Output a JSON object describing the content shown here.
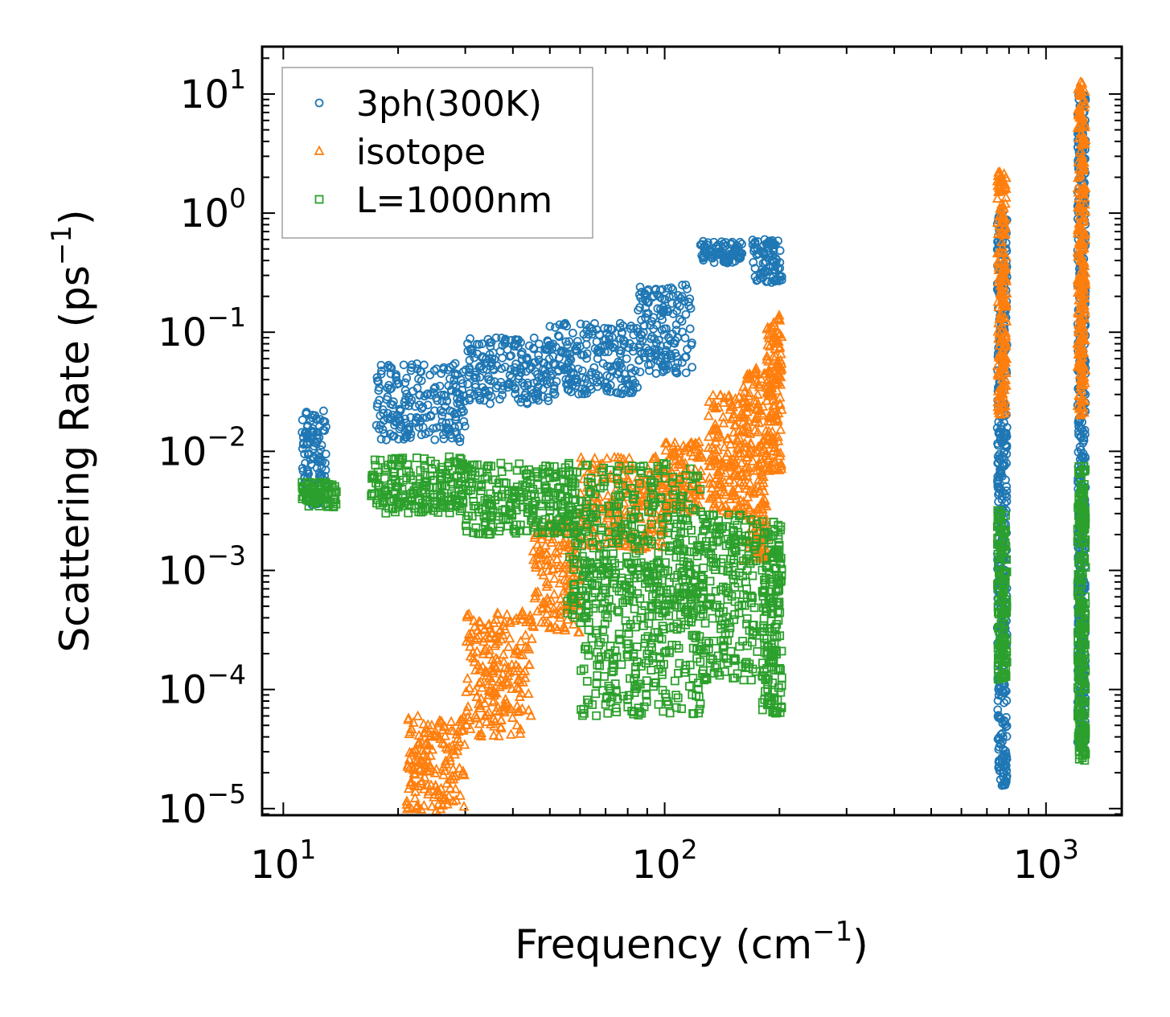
{
  "chart_data": {
    "type": "scatter",
    "xscale": "log",
    "yscale": "log",
    "xlabel_base": "Frequency (cm",
    "ylabel_base": "Scattering Rate (ps",
    "label_exponent": "−1",
    "label_close": ")",
    "xlim": [
      8.8,
      1580
    ],
    "ylim": [
      8.8e-06,
      25
    ],
    "x_ticks": [
      {
        "value": 10,
        "base": "10",
        "exp": "1"
      },
      {
        "value": 100,
        "base": "10",
        "exp": "2"
      },
      {
        "value": 1000,
        "base": "10",
        "exp": "3"
      }
    ],
    "y_ticks": [
      {
        "value": 10,
        "base": "10",
        "exp": "1"
      },
      {
        "value": 1,
        "base": "10",
        "exp": "0"
      },
      {
        "value": 0.1,
        "base": "10",
        "exp": "−1"
      },
      {
        "value": 0.01,
        "base": "10",
        "exp": "−2"
      },
      {
        "value": 0.001,
        "base": "10",
        "exp": "−3"
      },
      {
        "value": 0.0001,
        "base": "10",
        "exp": "−4"
      },
      {
        "value": 1e-05,
        "base": "10",
        "exp": "−5"
      }
    ],
    "legend_position": "top-left",
    "series": [
      {
        "name": "3ph(300K)",
        "marker": "circle",
        "color": "#1f77b4",
        "groups": [
          {
            "x": [
              11.2,
              13.0
            ],
            "y": [
              0.0035,
              0.022
            ]
          },
          {
            "x": [
              17.5,
              30
            ],
            "y": [
              0.012,
              0.055
            ]
          },
          {
            "x": [
              30,
              50
            ],
            "y": [
              0.025,
              0.09
            ]
          },
          {
            "x": [
              50,
              85
            ],
            "y": [
              0.03,
              0.12
            ]
          },
          {
            "x": [
              85,
              118
            ],
            "y": [
              0.045,
              0.25
            ]
          },
          {
            "x": [
              124,
              160
            ],
            "y": [
              0.38,
              0.58
            ]
          },
          {
            "x": [
              170,
              203
            ],
            "y": [
              0.26,
              0.62
            ]
          },
          {
            "x": [
              745,
              790
            ],
            "y": [
              1.5e-05,
              1.1
            ]
          },
          {
            "x": [
              1210,
              1270
            ],
            "y": [
              3e-05,
              11
            ]
          }
        ]
      },
      {
        "name": "isotope",
        "marker": "triangle",
        "color": "#ff7f0e",
        "groups": [
          {
            "x": [
              21,
              30
            ],
            "y": [
              9.5e-06,
              6e-05
            ]
          },
          {
            "x": [
              30,
              45
            ],
            "y": [
              4e-05,
              0.00045
            ]
          },
          {
            "x": [
              45,
              60
            ],
            "y": [
              0.0003,
              0.0025
            ]
          },
          {
            "x": [
              60,
              100
            ],
            "y": [
              0.0015,
              0.009
            ]
          },
          {
            "x": [
              100,
              125
            ],
            "y": [
              0.003,
              0.012
            ]
          },
          {
            "x": [
              130,
              160
            ],
            "y": [
              0.003,
              0.03
            ]
          },
          {
            "x": [
              160,
              185
            ],
            "y": [
              0.0012,
              0.05
            ]
          },
          {
            "x": [
              185,
              203
            ],
            "y": [
              0.0068,
              0.14
            ]
          },
          {
            "x": [
              745,
              790
            ],
            "y": [
              0.02,
              2.2
            ]
          },
          {
            "x": [
              1210,
              1270
            ],
            "y": [
              0.02,
              13
            ]
          }
        ]
      },
      {
        "name": "L=1000nm",
        "marker": "square",
        "color": "#2ca02c",
        "groups": [
          {
            "x": [
              11.2,
              13.8
            ],
            "y": [
              0.0034,
              0.0055
            ]
          },
          {
            "x": [
              17,
              30
            ],
            "y": [
              0.003,
              0.009
            ]
          },
          {
            "x": [
              30,
              60
            ],
            "y": [
              0.002,
              0.008
            ]
          },
          {
            "x": [
              55,
              125
            ],
            "y": [
              0.0004,
              0.008
            ]
          },
          {
            "x": [
              60,
              125
            ],
            "y": [
              6e-05,
              0.0012
            ]
          },
          {
            "x": [
              125,
              175
            ],
            "y": [
              0.00012,
              0.003
            ]
          },
          {
            "x": [
              180,
              203
            ],
            "y": [
              6e-05,
              0.0026
            ]
          },
          {
            "x": [
              745,
              790
            ],
            "y": [
              0.00012,
              0.0032
            ]
          },
          {
            "x": [
              1210,
              1270
            ],
            "y": [
              2.5e-05,
              0.0075
            ]
          }
        ]
      }
    ]
  }
}
